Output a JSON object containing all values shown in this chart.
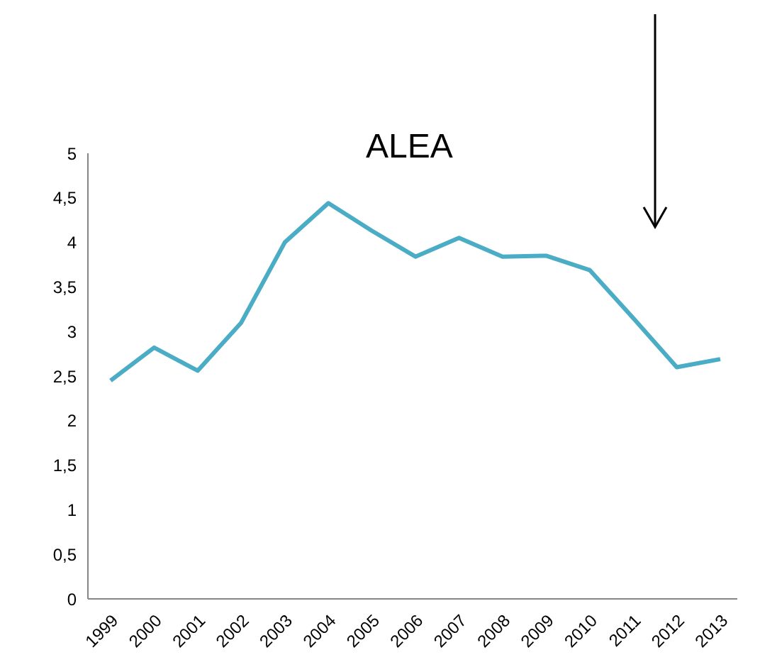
{
  "chart_data": {
    "type": "line",
    "title": "ALEA",
    "categories": [
      "1999",
      "2000",
      "2001",
      "2002",
      "2003",
      "2004",
      "2005",
      "2006",
      "2007",
      "2008",
      "2009",
      "2010",
      "2011",
      "2012",
      "2013"
    ],
    "series": [
      {
        "color": "#4bacc6",
        "values": [
          2.45,
          2.82,
          2.56,
          3.1,
          4.0,
          4.44,
          4.13,
          3.84,
          4.05,
          3.84,
          3.85,
          3.69,
          3.15,
          2.6,
          2.69
        ]
      }
    ],
    "ylim": [
      0,
      5
    ],
    "yticks": [
      0,
      {
        "value": 0.5,
        "label": "0,5"
      },
      1,
      {
        "value": 1.5,
        "label": "1,5"
      },
      2,
      {
        "value": 2.5,
        "label": "2,5"
      },
      3,
      {
        "value": 3.5,
        "label": "3,5"
      },
      4,
      {
        "value": 4.5,
        "label": "4,5"
      },
      5
    ],
    "grid": false,
    "legend": false,
    "marker": "none",
    "line_style": "solid"
  }
}
